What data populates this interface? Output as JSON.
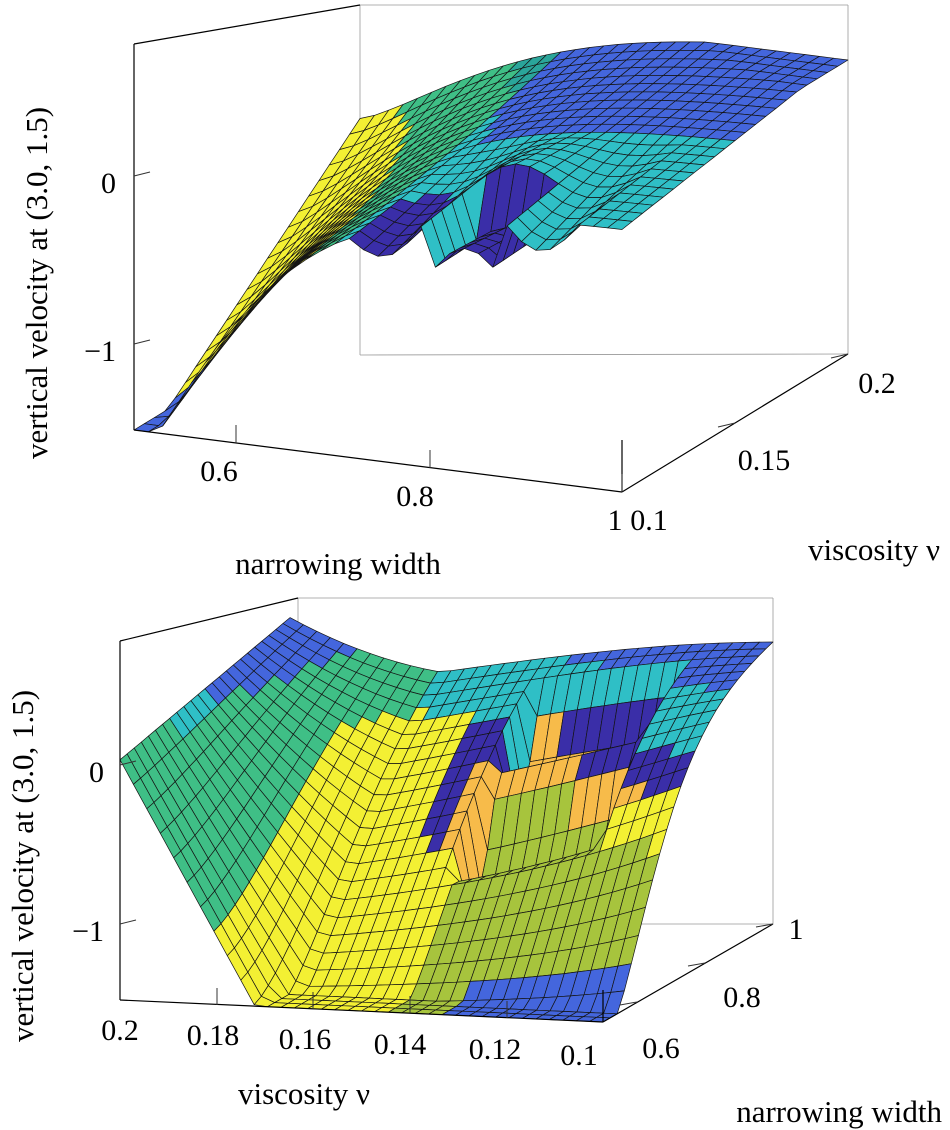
{
  "colors": {
    "blue": "#4466dd",
    "indigo": "#3a2ea8",
    "teal": "#2fbfc6",
    "sea": "#2aa59a",
    "green": "#3fbf86",
    "olive": "#a7c43d",
    "yellow": "#f3f033",
    "orange": "#f7bb4a",
    "mesh_line": "#141414"
  },
  "chart_data": [
    {
      "type": "surface",
      "title": "",
      "view": "viewed from the narrowing width side",
      "xlabel": "narrowing width",
      "ylabel": "viscosity ν",
      "zlabel": "vertical velocity at (3.0, 1.5)",
      "x_range": [
        0.5,
        1.0
      ],
      "y_range": [
        0.1,
        0.2
      ],
      "z_range": [
        -1.35,
        0.4
      ],
      "x_ticks": [
        {
          "value": 0.6,
          "label": "0.6"
        },
        {
          "value": 0.8,
          "label": "0.8"
        },
        {
          "value": 1.0,
          "label": "1"
        }
      ],
      "y_ticks": [
        {
          "value": 0.1,
          "label": "0.1"
        },
        {
          "value": 0.15,
          "label": "0.15"
        },
        {
          "value": 0.2,
          "label": "0.2"
        }
      ],
      "z_ticks": [
        {
          "value": -1,
          "label": "−1"
        },
        {
          "value": 0,
          "label": "0"
        }
      ],
      "grid": true
    },
    {
      "type": "surface",
      "title": "",
      "view": "viewed from the viscosity side",
      "xlabel": "viscosity ν",
      "ylabel": "narrowing width",
      "zlabel": "vertical velocity at (3.0, 1.5)",
      "x_range": [
        0.2,
        0.1
      ],
      "y_range": [
        0.5,
        1.0
      ],
      "z_range": [
        -1.4,
        0.4
      ],
      "x_ticks": [
        {
          "value": 0.2,
          "label": "0.2"
        },
        {
          "value": 0.18,
          "label": "0.18"
        },
        {
          "value": 0.16,
          "label": "0.16"
        },
        {
          "value": 0.14,
          "label": "0.14"
        },
        {
          "value": 0.12,
          "label": "0.12"
        },
        {
          "value": 0.1,
          "label": "0.1"
        }
      ],
      "y_ticks": [
        {
          "value": 0.6,
          "label": "0.6"
        },
        {
          "value": 0.8,
          "label": "0.8"
        },
        {
          "value": 1.0,
          "label": "1"
        }
      ],
      "z_ticks": [
        {
          "value": -1,
          "label": "−1"
        },
        {
          "value": 0,
          "label": "0"
        }
      ],
      "grid": true
    }
  ]
}
